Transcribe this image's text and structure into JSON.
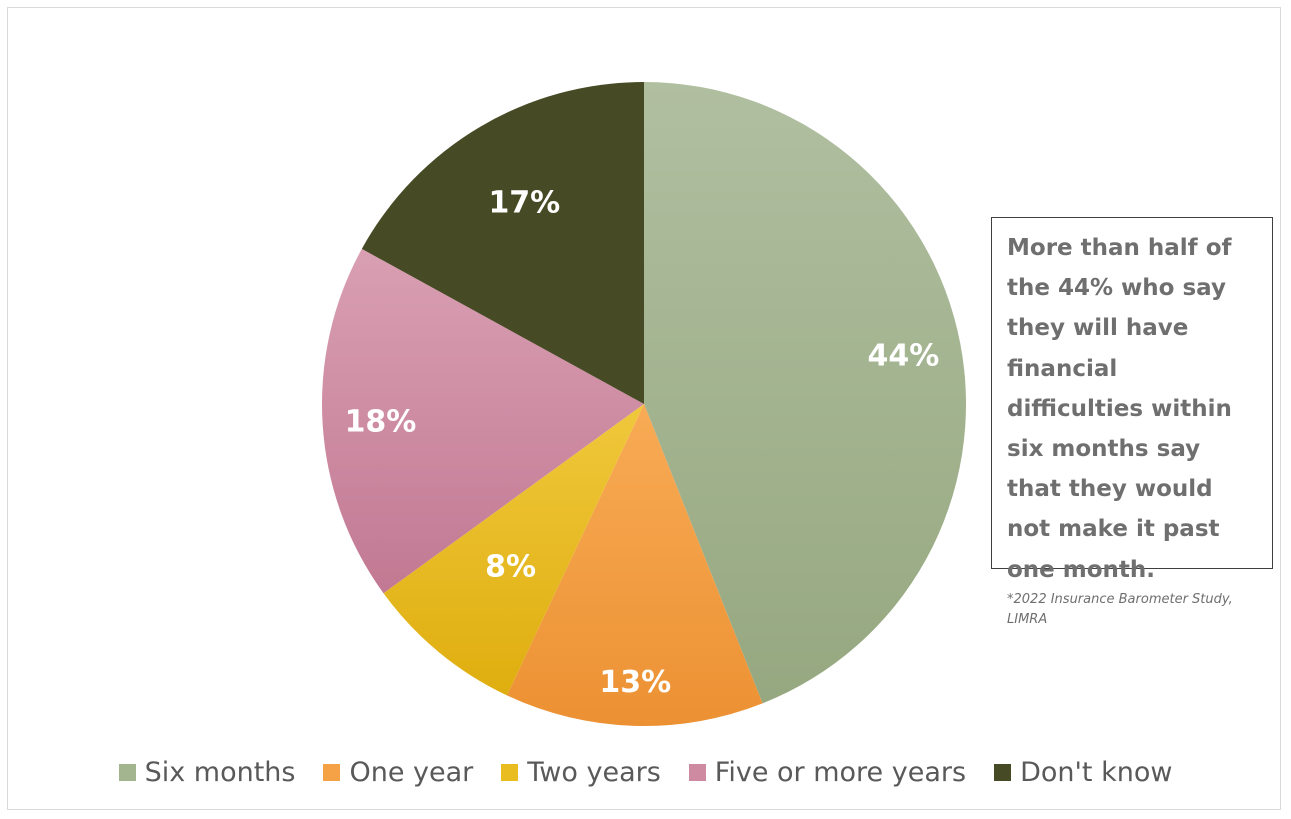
{
  "chart_data": {
    "type": "pie",
    "title": "",
    "categories": [
      "Six months",
      "One year",
      "Two years",
      "Five or more years",
      "Don't know"
    ],
    "values": [
      44,
      13,
      8,
      18,
      17
    ],
    "labels": [
      "44%",
      "13%",
      "8%",
      "18%",
      "17%"
    ],
    "colors": [
      "#a3b58e",
      "#f5a145",
      "#e9bd1f",
      "#cd8aa0",
      "#464b25"
    ],
    "start_angle_deg": 0,
    "direction": "clockwise",
    "legend_position": "bottom"
  },
  "annotation": {
    "text": "More than half of the 44% who say they will have financial difficulties within six months say that they would not make it past one month."
  },
  "source": {
    "text": "*2022 Insurance Barometer Study, LIMRA"
  }
}
